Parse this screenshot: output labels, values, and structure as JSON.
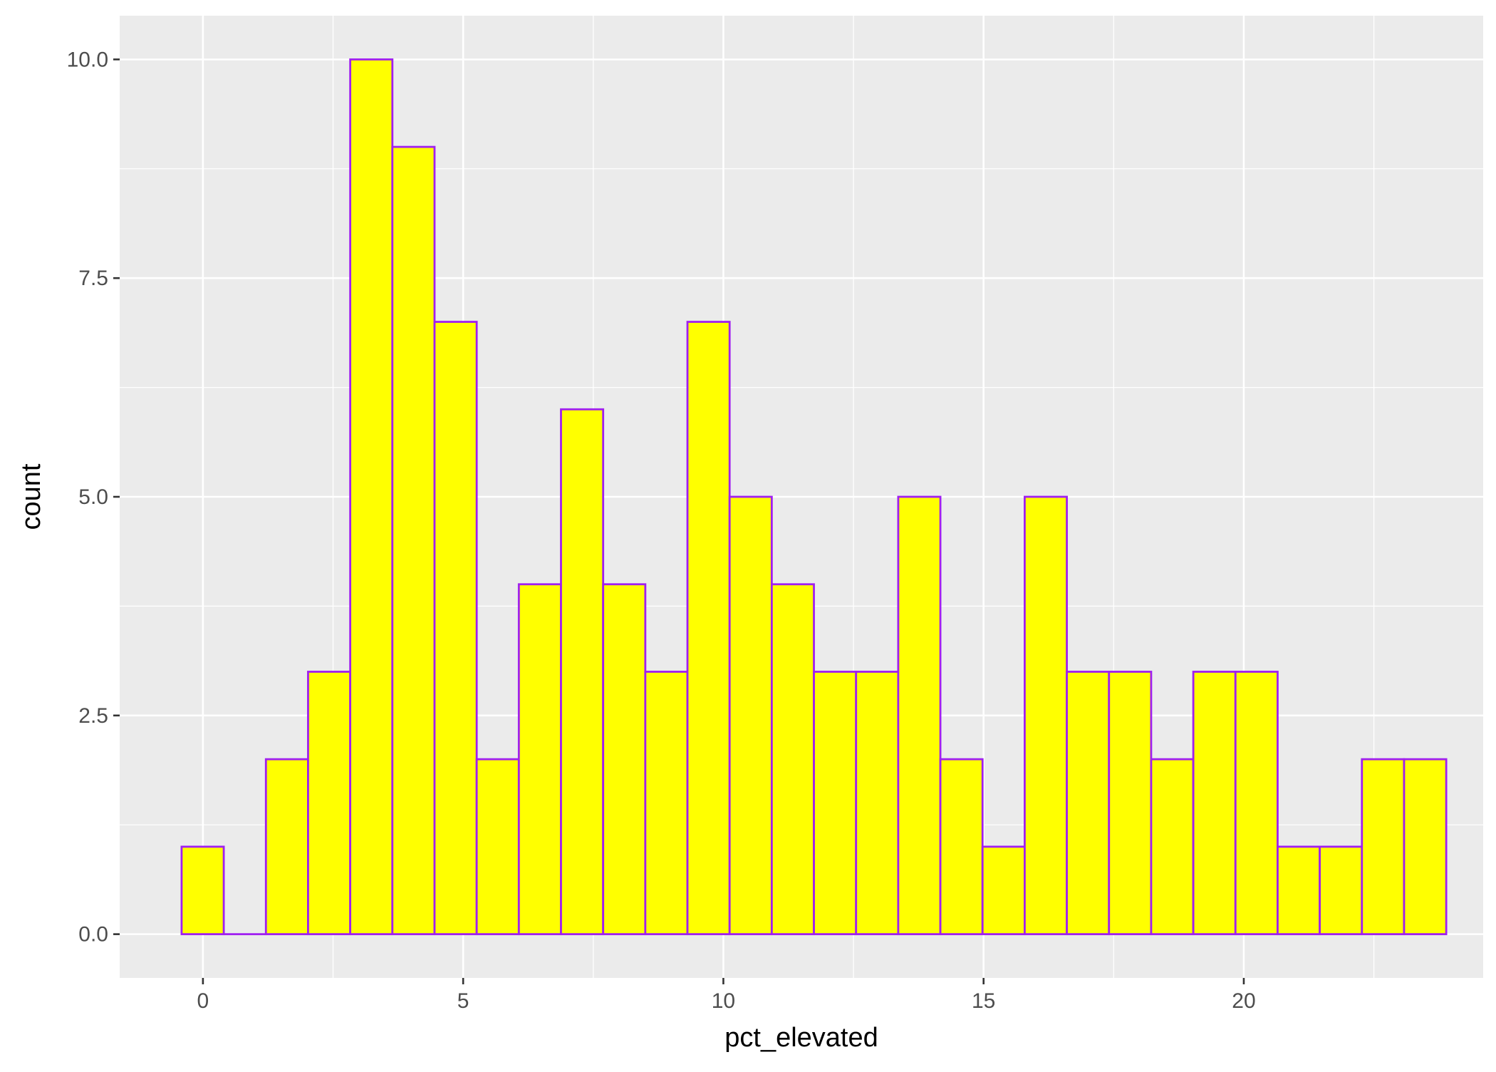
{
  "chart_data": {
    "type": "bar",
    "subtype": "histogram",
    "title": "",
    "xlabel": "pct_elevated",
    "ylabel": "count",
    "xlim": [
      -1.6,
      24.6
    ],
    "ylim": [
      -0.5,
      10.5
    ],
    "x_ticks": [
      0,
      5,
      10,
      15,
      20
    ],
    "x_tick_labels": [
      "0",
      "5",
      "10",
      "15",
      "20"
    ],
    "y_ticks": [
      0,
      2.5,
      5,
      7.5,
      10
    ],
    "y_tick_labels": [
      "0.0",
      "2.5",
      "5.0",
      "7.5",
      "10.0"
    ],
    "grid": true,
    "bin_width": 0.81,
    "bin_start": -0.41,
    "values": [
      1,
      0,
      2,
      3,
      10,
      9,
      7,
      2,
      4,
      6,
      4,
      3,
      7,
      5,
      4,
      3,
      3,
      5,
      2,
      1,
      5,
      3,
      3,
      2,
      3,
      3,
      1,
      1,
      2,
      2
    ],
    "colors": {
      "bar_fill": "#FFFF00",
      "bar_outline": "#A020F0",
      "panel_background": "#EBEBEB",
      "grid_line": "#FFFFFF",
      "tick_label": "#4D4D4D",
      "axis_title": "#000000"
    }
  }
}
